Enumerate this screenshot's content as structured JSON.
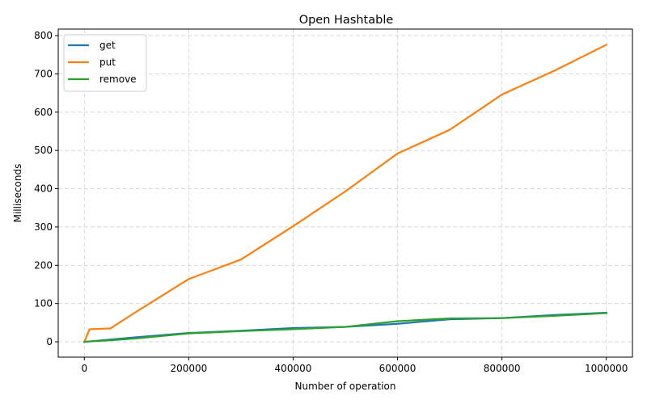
{
  "chart_data": {
    "type": "line",
    "title": "Open Hashtable",
    "xlabel": "Number of operation",
    "ylabel": "Milliseconds",
    "xlim": [
      -50000,
      1050000
    ],
    "ylim": [
      -40,
      817
    ],
    "xticks": [
      0,
      200000,
      400000,
      600000,
      800000,
      1000000
    ],
    "yticks": [
      0,
      100,
      200,
      300,
      400,
      500,
      600,
      700,
      800
    ],
    "grid": true,
    "legend_position": "top-left",
    "series": [
      {
        "name": "get",
        "color": "#1f77b4",
        "x": [
          0,
          10000,
          50000,
          100000,
          200000,
          300000,
          400000,
          500000,
          600000,
          700000,
          800000,
          900000,
          1000000
        ],
        "y": [
          0,
          1,
          6,
          12,
          23,
          29,
          36,
          39,
          47,
          59,
          62,
          70,
          76
        ]
      },
      {
        "name": "put",
        "color": "#ff7f0e",
        "x": [
          0,
          10000,
          50000,
          100000,
          200000,
          300000,
          400000,
          500000,
          600000,
          700000,
          800000,
          900000,
          1000000
        ],
        "y": [
          0,
          33,
          35,
          79,
          164,
          215,
          302,
          393,
          492,
          554,
          646,
          708,
          776
        ]
      },
      {
        "name": "remove",
        "color": "#2ca02c",
        "x": [
          0,
          10000,
          50000,
          100000,
          200000,
          300000,
          400000,
          500000,
          600000,
          700000,
          800000,
          900000,
          1000000
        ],
        "y": [
          0,
          1,
          4,
          9,
          22,
          28,
          33,
          39,
          54,
          61,
          62,
          68,
          75
        ]
      }
    ]
  }
}
